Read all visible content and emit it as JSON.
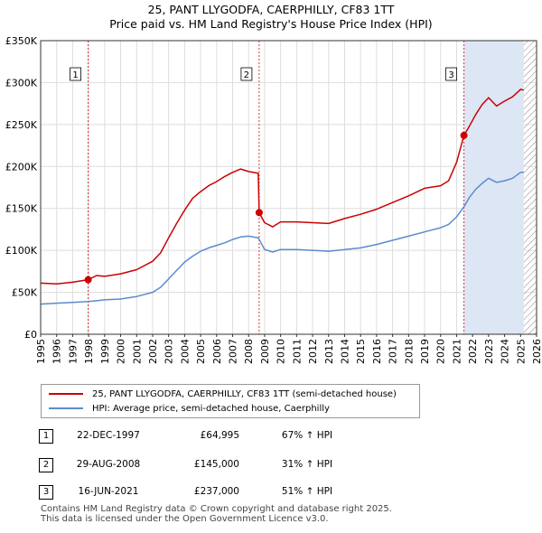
{
  "title_line1": "25, PANT LLYGODFA, CAERPHILLY, CF83 1TT",
  "title_line2": "Price paid vs. HM Land Registry's House Price Index (HPI)",
  "colors": {
    "price": "#cc0000",
    "hpi": "#5b8ccc",
    "marker_line": "#dd3333",
    "shade": "#dde6f5",
    "hatch": "#888888",
    "grid": "#dddddd"
  },
  "legend": {
    "price": "25, PANT LLYGODFA, CAERPHILLY, CF83 1TT (semi-detached house)",
    "hpi": "HPI: Average price, semi-detached house, Caerphilly"
  },
  "sales": [
    {
      "num": "1",
      "date": "22-DEC-1997",
      "price": "£64,995",
      "hpi": "67% ↑ HPI",
      "x": 1997.97,
      "y": 64995
    },
    {
      "num": "2",
      "date": "29-AUG-2008",
      "price": "£145,000",
      "hpi": "31% ↑ HPI",
      "x": 2008.66,
      "y": 145000
    },
    {
      "num": "3",
      "date": "16-JUN-2021",
      "price": "£237,000",
      "hpi": "51% ↑ HPI",
      "x": 2021.46,
      "y": 237000
    }
  ],
  "footer": {
    "line1": "Contains HM Land Registry data © Crown copyright and database right 2025.",
    "line2": "This data is licensed under the Open Government Licence v3.0."
  },
  "chart_data": {
    "type": "line",
    "xlim": [
      1995,
      2026
    ],
    "ylim": [
      0,
      350000
    ],
    "x_ticks": [
      1995,
      1996,
      1997,
      1998,
      1999,
      2000,
      2001,
      2002,
      2003,
      2004,
      2005,
      2006,
      2007,
      2008,
      2009,
      2010,
      2011,
      2012,
      2013,
      2014,
      2015,
      2016,
      2017,
      2018,
      2019,
      2020,
      2021,
      2022,
      2023,
      2024,
      2025,
      2026
    ],
    "y_ticks": [
      0,
      50000,
      100000,
      150000,
      200000,
      250000,
      300000,
      350000
    ],
    "y_tick_labels": [
      "£0",
      "£50K",
      "£100K",
      "£150K",
      "£200K",
      "£250K",
      "£300K",
      "£350K"
    ],
    "data_end_year": 2025.2,
    "series": [
      {
        "name": "25, PANT LLYGODFA, CAERPHILLY, CF83 1TT (semi-detached house)",
        "color": "#cc0000",
        "x": [
          1995,
          1996,
          1997,
          1997.97,
          1998.5,
          1999,
          2000,
          2001,
          2002,
          2002.5,
          2003,
          2003.5,
          2004,
          2004.5,
          2005,
          2005.5,
          2006,
          2006.5,
          2007,
          2007.5,
          2008,
          2008.6,
          2008.66,
          2009,
          2009.5,
          2010,
          2011,
          2012,
          2013,
          2014,
          2015,
          2016,
          2017,
          2018,
          2019,
          2020,
          2020.5,
          2021.0,
          2021.46,
          2021.8,
          2022.2,
          2022.6,
          2023,
          2023.5,
          2024,
          2024.5,
          2025,
          2025.2
        ],
        "y": [
          61000,
          60000,
          62000,
          64995,
          70000,
          69000,
          72000,
          77000,
          87000,
          97000,
          115000,
          132000,
          148000,
          162000,
          170000,
          177000,
          182000,
          188000,
          193000,
          197000,
          194000,
          192000,
          145000,
          133000,
          128000,
          134000,
          134000,
          133000,
          132000,
          138000,
          143000,
          149000,
          157000,
          165000,
          174000,
          177000,
          183000,
          205000,
          237000,
          248000,
          262000,
          274000,
          282000,
          272000,
          278000,
          283000,
          292000,
          291000
        ]
      },
      {
        "name": "HPI: Average price, semi-detached house, Caerphilly",
        "color": "#5b8ccc",
        "x": [
          1995,
          1996,
          1997,
          1997.97,
          1998.5,
          1999,
          2000,
          2001,
          2002,
          2002.5,
          2003,
          2003.5,
          2004,
          2004.5,
          2005,
          2005.5,
          2006,
          2006.5,
          2007,
          2007.5,
          2008,
          2008.6,
          2009,
          2009.5,
          2010,
          2011,
          2012,
          2013,
          2014,
          2015,
          2016,
          2017,
          2018,
          2019,
          2020,
          2020.5,
          2021.0,
          2021.46,
          2021.8,
          2022.2,
          2022.6,
          2023,
          2023.5,
          2024,
          2024.5,
          2025,
          2025.2
        ],
        "y": [
          36000,
          37000,
          38000,
          39000,
          40000,
          41000,
          42000,
          45000,
          50000,
          56000,
          66000,
          76000,
          86000,
          93000,
          99000,
          103000,
          106000,
          109000,
          113000,
          116000,
          117000,
          115000,
          101000,
          98000,
          101000,
          101000,
          100000,
          99000,
          101000,
          103000,
          107000,
          112000,
          117000,
          122000,
          127000,
          131000,
          140000,
          152000,
          163000,
          173000,
          180000,
          186000,
          181000,
          183000,
          186000,
          193000,
          193000
        ]
      }
    ]
  }
}
